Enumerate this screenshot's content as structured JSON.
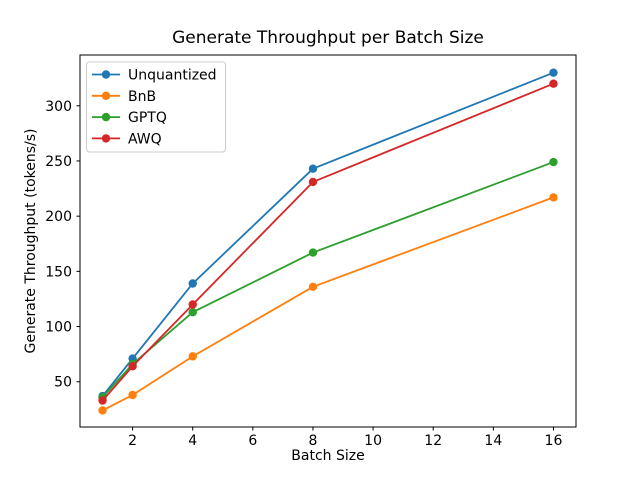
{
  "window": {
    "background": "#ffffff",
    "frame_color": "#000000",
    "legend_border_color": "#cccccc"
  },
  "chart_data": {
    "type": "line",
    "title": "Generate Throughput per Batch Size",
    "xlabel": "Batch Size",
    "ylabel": "Generate Throughput (tokens/s)",
    "x": [
      1,
      2,
      4,
      8,
      16
    ],
    "series": [
      {
        "name": "Unquantized",
        "color": "#1f77b4",
        "values": [
          37,
          71,
          139,
          243,
          330
        ]
      },
      {
        "name": "BnB",
        "color": "#ff7f0e",
        "values": [
          24,
          38,
          73,
          136,
          217
        ]
      },
      {
        "name": "GPTQ",
        "color": "#2ca02c",
        "values": [
          36,
          66,
          113,
          167,
          249
        ]
      },
      {
        "name": "AWQ",
        "color": "#d62728",
        "values": [
          33,
          64,
          120,
          231,
          320
        ]
      }
    ],
    "xticks": [
      2,
      4,
      6,
      8,
      10,
      12,
      14,
      16
    ],
    "yticks": [
      50,
      100,
      150,
      200,
      250,
      300
    ],
    "xlim": [
      0.25,
      16.75
    ],
    "ylim": [
      9,
      346
    ],
    "grid": false,
    "marker": "o",
    "legend": {
      "position": "upper left",
      "entries": [
        "Unquantized",
        "BnB",
        "GPTQ",
        "AWQ"
      ]
    }
  }
}
